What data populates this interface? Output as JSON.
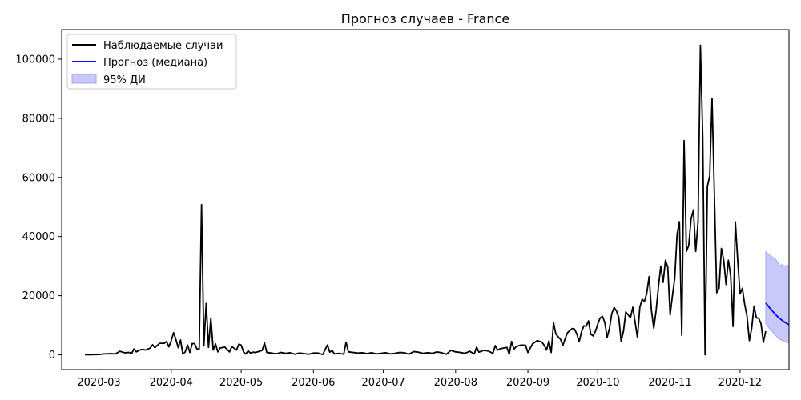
{
  "chart_data": {
    "type": "line",
    "title": "Прогноз случаев - France",
    "xlabel": "",
    "ylabel": "",
    "xlim": [
      "2020-02-14",
      "2020-12-22"
    ],
    "ylim": [
      -5000,
      110000
    ],
    "x_ticks": [
      "2020-03-01",
      "2020-04-01",
      "2020-05-01",
      "2020-06-01",
      "2020-07-01",
      "2020-08-01",
      "2020-09-01",
      "2020-10-01",
      "2020-11-01",
      "2020-12-01"
    ],
    "x_tick_labels": [
      "2020-03",
      "2020-04",
      "2020-05",
      "2020-06",
      "2020-07",
      "2020-08",
      "2020-09",
      "2020-10",
      "2020-11",
      "2020-12"
    ],
    "y_ticks": [
      0,
      20000,
      40000,
      60000,
      80000,
      100000
    ],
    "y_tick_labels": [
      "0",
      "20000",
      "40000",
      "60000",
      "80000",
      "100000"
    ],
    "legend": {
      "position": "top-left",
      "entries": [
        "Наблюдаемые случаи",
        "Прогноз (медиана)",
        "95% ДИ"
      ]
    },
    "colors": {
      "observed": "#000000",
      "forecast": "#0000ff",
      "ci_fill": "#c8c8fa",
      "ci_stroke": "#a6a6f5"
    },
    "observed": {
      "name": "Наблюдаемые случаи",
      "points": [
        [
          "2020-02-24",
          0
        ],
        [
          "2020-03-01",
          100
        ],
        [
          "2020-03-03",
          300
        ],
        [
          "2020-03-06",
          400
        ],
        [
          "2020-03-08",
          300
        ],
        [
          "2020-03-10",
          1200
        ],
        [
          "2020-03-12",
          700
        ],
        [
          "2020-03-14",
          800
        ],
        [
          "2020-03-15",
          400
        ],
        [
          "2020-03-16",
          2000
        ],
        [
          "2020-03-17",
          1000
        ],
        [
          "2020-03-19",
          1800
        ],
        [
          "2020-03-20",
          1800
        ],
        [
          "2020-03-21",
          1600
        ],
        [
          "2020-03-23",
          2300
        ],
        [
          "2020-03-24",
          3400
        ],
        [
          "2020-03-25",
          2400
        ],
        [
          "2020-03-27",
          3900
        ],
        [
          "2020-03-29",
          3900
        ],
        [
          "2020-03-30",
          4500
        ],
        [
          "2020-03-31",
          2700
        ],
        [
          "2020-04-01",
          4800
        ],
        [
          "2020-04-02",
          7500
        ],
        [
          "2020-04-03",
          5200
        ],
        [
          "2020-04-04",
          2400
        ],
        [
          "2020-04-05",
          5000
        ],
        [
          "2020-04-06",
          200
        ],
        [
          "2020-04-07",
          1000
        ],
        [
          "2020-04-08",
          3300
        ],
        [
          "2020-04-09",
          800
        ],
        [
          "2020-04-10",
          3800
        ],
        [
          "2020-04-11",
          3800
        ],
        [
          "2020-04-12",
          2000
        ],
        [
          "2020-04-13",
          2000
        ],
        [
          "2020-04-14",
          50800
        ],
        [
          "2020-04-15",
          3000
        ],
        [
          "2020-04-16",
          17400
        ],
        [
          "2020-04-17",
          2500
        ],
        [
          "2020-04-18",
          12400
        ],
        [
          "2020-04-19",
          1600
        ],
        [
          "2020-04-20",
          3700
        ],
        [
          "2020-04-21",
          1000
        ],
        [
          "2020-04-22",
          2300
        ],
        [
          "2020-04-24",
          2600
        ],
        [
          "2020-04-26",
          1000
        ],
        [
          "2020-04-27",
          2800
        ],
        [
          "2020-04-29",
          1600
        ],
        [
          "2020-04-30",
          3600
        ],
        [
          "2020-05-01",
          3300
        ],
        [
          "2020-05-02",
          1000
        ],
        [
          "2020-05-03",
          300
        ],
        [
          "2020-05-04",
          1300
        ],
        [
          "2020-05-05",
          600
        ],
        [
          "2020-05-06",
          900
        ],
        [
          "2020-05-07",
          800
        ],
        [
          "2020-05-08",
          1000
        ],
        [
          "2020-05-10",
          1500
        ],
        [
          "2020-05-11",
          4000
        ],
        [
          "2020-05-12",
          800
        ],
        [
          "2020-05-14",
          600
        ],
        [
          "2020-05-16",
          300
        ],
        [
          "2020-05-18",
          800
        ],
        [
          "2020-05-20",
          500
        ],
        [
          "2020-05-22",
          700
        ],
        [
          "2020-05-24",
          200
        ],
        [
          "2020-05-26",
          600
        ],
        [
          "2020-05-28",
          400
        ],
        [
          "2020-05-30",
          200
        ],
        [
          "2020-06-01",
          600
        ],
        [
          "2020-06-03",
          600
        ],
        [
          "2020-06-05",
          100
        ],
        [
          "2020-06-07",
          3300
        ],
        [
          "2020-06-08",
          900
        ],
        [
          "2020-06-09",
          1500
        ],
        [
          "2020-06-10",
          300
        ],
        [
          "2020-06-12",
          500
        ],
        [
          "2020-06-14",
          200
        ],
        [
          "2020-06-15",
          4300
        ],
        [
          "2020-06-16",
          1000
        ],
        [
          "2020-06-18",
          800
        ],
        [
          "2020-06-20",
          600
        ],
        [
          "2020-06-22",
          700
        ],
        [
          "2020-06-24",
          400
        ],
        [
          "2020-06-26",
          700
        ],
        [
          "2020-06-28",
          300
        ],
        [
          "2020-06-30",
          500
        ],
        [
          "2020-07-02",
          700
        ],
        [
          "2020-07-04",
          300
        ],
        [
          "2020-07-06",
          500
        ],
        [
          "2020-07-08",
          800
        ],
        [
          "2020-07-10",
          700
        ],
        [
          "2020-07-12",
          200
        ],
        [
          "2020-07-14",
          1100
        ],
        [
          "2020-07-16",
          900
        ],
        [
          "2020-07-18",
          500
        ],
        [
          "2020-07-20",
          700
        ],
        [
          "2020-07-22",
          500
        ],
        [
          "2020-07-24",
          1000
        ],
        [
          "2020-07-26",
          700
        ],
        [
          "2020-07-28",
          200
        ],
        [
          "2020-07-30",
          1500
        ],
        [
          "2020-08-01",
          1000
        ],
        [
          "2020-08-03",
          800
        ],
        [
          "2020-08-05",
          500
        ],
        [
          "2020-08-07",
          1200
        ],
        [
          "2020-08-09",
          300
        ],
        [
          "2020-08-10",
          2600
        ],
        [
          "2020-08-11",
          900
        ],
        [
          "2020-08-13",
          1500
        ],
        [
          "2020-08-15",
          1300
        ],
        [
          "2020-08-17",
          500
        ],
        [
          "2020-08-18",
          3100
        ],
        [
          "2020-08-19",
          1600
        ],
        [
          "2020-08-20",
          2000
        ],
        [
          "2020-08-21",
          2200
        ],
        [
          "2020-08-23",
          2500
        ],
        [
          "2020-08-24",
          200
        ],
        [
          "2020-08-25",
          4500
        ],
        [
          "2020-08-26",
          1900
        ],
        [
          "2020-08-27",
          2800
        ],
        [
          "2020-08-29",
          3300
        ],
        [
          "2020-08-31",
          3200
        ],
        [
          "2020-09-01",
          800
        ],
        [
          "2020-09-03",
          3700
        ],
        [
          "2020-09-05",
          4800
        ],
        [
          "2020-09-07",
          4300
        ],
        [
          "2020-09-08",
          3200
        ],
        [
          "2020-09-09",
          1600
        ],
        [
          "2020-09-10",
          4700
        ],
        [
          "2020-09-11",
          800
        ],
        [
          "2020-09-12",
          10800
        ],
        [
          "2020-09-13",
          7000
        ],
        [
          "2020-09-15",
          5200
        ],
        [
          "2020-09-16",
          3200
        ],
        [
          "2020-09-17",
          5500
        ],
        [
          "2020-09-18",
          7500
        ],
        [
          "2020-09-20",
          8900
        ],
        [
          "2020-09-21",
          8700
        ],
        [
          "2020-09-22",
          7000
        ],
        [
          "2020-09-23",
          4500
        ],
        [
          "2020-09-24",
          7800
        ],
        [
          "2020-09-25",
          9800
        ],
        [
          "2020-09-26",
          9700
        ],
        [
          "2020-09-27",
          11500
        ],
        [
          "2020-09-28",
          6900
        ],
        [
          "2020-09-29",
          6400
        ],
        [
          "2020-09-30",
          8000
        ],
        [
          "2020-10-01",
          10500
        ],
        [
          "2020-10-02",
          12500
        ],
        [
          "2020-10-03",
          13000
        ],
        [
          "2020-10-04",
          10900
        ],
        [
          "2020-10-05",
          5900
        ],
        [
          "2020-10-06",
          9000
        ],
        [
          "2020-10-07",
          14000
        ],
        [
          "2020-10-08",
          16000
        ],
        [
          "2020-10-09",
          14800
        ],
        [
          "2020-10-10",
          12600
        ],
        [
          "2020-10-11",
          4500
        ],
        [
          "2020-10-12",
          8000
        ],
        [
          "2020-10-13",
          14500
        ],
        [
          "2020-10-14",
          13500
        ],
        [
          "2020-10-15",
          12500
        ],
        [
          "2020-10-16",
          16100
        ],
        [
          "2020-10-17",
          11000
        ],
        [
          "2020-10-18",
          5800
        ],
        [
          "2020-10-19",
          16000
        ],
        [
          "2020-10-20",
          18800
        ],
        [
          "2020-10-21",
          18000
        ],
        [
          "2020-10-22",
          20900
        ],
        [
          "2020-10-23",
          26500
        ],
        [
          "2020-10-24",
          15000
        ],
        [
          "2020-10-25",
          9000
        ],
        [
          "2020-10-26",
          15000
        ],
        [
          "2020-10-27",
          23000
        ],
        [
          "2020-10-28",
          30000
        ],
        [
          "2020-10-29",
          24500
        ],
        [
          "2020-10-30",
          32000
        ],
        [
          "2020-10-31",
          29700
        ],
        [
          "2020-11-01",
          13500
        ],
        [
          "2020-11-02",
          20000
        ],
        [
          "2020-11-03",
          26000
        ],
        [
          "2020-11-04",
          40800
        ],
        [
          "2020-11-05",
          45000
        ],
        [
          "2020-11-06",
          6600
        ],
        [
          "2020-11-07",
          72500
        ],
        [
          "2020-11-08",
          35000
        ],
        [
          "2020-11-09",
          37000
        ],
        [
          "2020-11-10",
          46000
        ],
        [
          "2020-11-11",
          49000
        ],
        [
          "2020-11-12",
          35000
        ],
        [
          "2020-11-13",
          45000
        ],
        [
          "2020-11-14",
          104700
        ],
        [
          "2020-11-15",
          74000
        ],
        [
          "2020-11-16",
          0
        ],
        [
          "2020-11-17",
          57000
        ],
        [
          "2020-11-18",
          60500
        ],
        [
          "2020-11-19",
          86700
        ],
        [
          "2020-11-20",
          54000
        ],
        [
          "2020-11-21",
          21000
        ],
        [
          "2020-11-22",
          22500
        ],
        [
          "2020-11-23",
          36000
        ],
        [
          "2020-11-24",
          32000
        ],
        [
          "2020-11-25",
          23800
        ],
        [
          "2020-11-26",
          32000
        ],
        [
          "2020-11-27",
          26600
        ],
        [
          "2020-11-28",
          9600
        ],
        [
          "2020-11-29",
          45000
        ],
        [
          "2020-11-30",
          32000
        ],
        [
          "2020-12-01",
          20600
        ],
        [
          "2020-12-02",
          22500
        ],
        [
          "2020-12-03",
          17000
        ],
        [
          "2020-12-04",
          13000
        ],
        [
          "2020-12-05",
          4800
        ],
        [
          "2020-12-06",
          9000
        ],
        [
          "2020-12-07",
          16500
        ],
        [
          "2020-12-08",
          12500
        ],
        [
          "2020-12-09",
          12400
        ],
        [
          "2020-12-10",
          10500
        ],
        [
          "2020-12-11",
          4200
        ],
        [
          "2020-12-12",
          8000
        ]
      ]
    },
    "forecast": {
      "name": "Прогноз (медиана)",
      "points": [
        [
          "2020-12-12",
          17500
        ],
        [
          "2020-12-13",
          16600
        ],
        [
          "2020-12-14",
          15600
        ],
        [
          "2020-12-15",
          14700
        ],
        [
          "2020-12-16",
          13800
        ],
        [
          "2020-12-17",
          13000
        ],
        [
          "2020-12-18",
          12300
        ],
        [
          "2020-12-19",
          11700
        ],
        [
          "2020-12-20",
          11100
        ],
        [
          "2020-12-21",
          10600
        ],
        [
          "2020-12-22",
          10200
        ]
      ]
    },
    "ci95": {
      "name": "95% ДИ",
      "upper": [
        [
          "2020-12-12",
          34800
        ],
        [
          "2020-12-13",
          34200
        ],
        [
          "2020-12-14",
          33600
        ],
        [
          "2020-12-15",
          33000
        ],
        [
          "2020-12-16",
          32600
        ],
        [
          "2020-12-17",
          31500
        ],
        [
          "2020-12-18",
          30200
        ],
        [
          "2020-12-19",
          30500
        ],
        [
          "2020-12-20",
          30000
        ],
        [
          "2020-12-21",
          30300
        ],
        [
          "2020-12-22",
          30000
        ]
      ],
      "lower": [
        [
          "2020-12-12",
          10600
        ],
        [
          "2020-12-13",
          9500
        ],
        [
          "2020-12-14",
          8500
        ],
        [
          "2020-12-15",
          7700
        ],
        [
          "2020-12-16",
          6800
        ],
        [
          "2020-12-17",
          6000
        ],
        [
          "2020-12-18",
          5300
        ],
        [
          "2020-12-19",
          4900
        ],
        [
          "2020-12-20",
          4500
        ],
        [
          "2020-12-21",
          4200
        ],
        [
          "2020-12-22",
          4000
        ]
      ]
    }
  }
}
